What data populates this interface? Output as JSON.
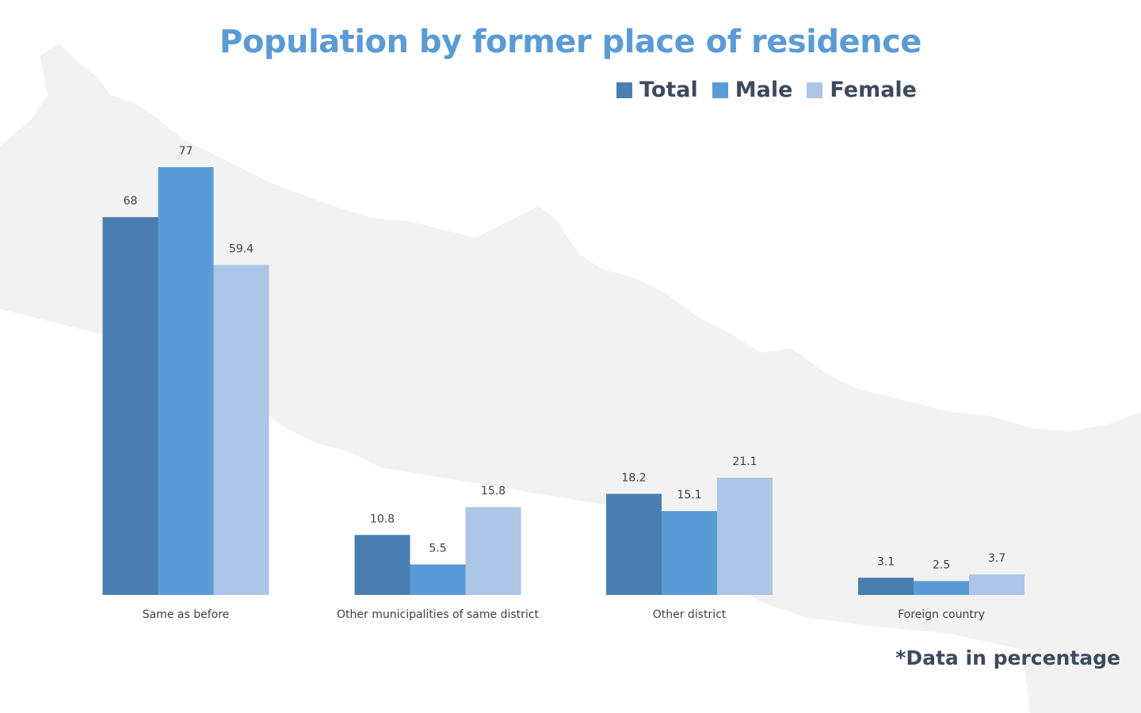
{
  "chart_data": {
    "type": "bar",
    "title": "Population by former place of residence",
    "categories": [
      "Same as before",
      "Other municipalities of same district",
      "Other district",
      "Foreign country"
    ],
    "series": [
      {
        "name": "Total",
        "values": [
          68,
          10.8,
          18.2,
          3.1
        ],
        "color": "#4a7eb0"
      },
      {
        "name": "Male",
        "values": [
          77,
          5.5,
          15.1,
          2.5
        ],
        "color": "#5b9bd5"
      },
      {
        "name": "Female",
        "values": [
          59.4,
          15.8,
          21.1,
          3.7
        ],
        "color": "#adc5e6"
      }
    ],
    "data_labels": [
      [
        "68",
        "10.8",
        "18.2",
        "3.1"
      ],
      [
        "77",
        "5.5",
        "15.1",
        "2.5"
      ],
      [
        "59.4",
        "15.8",
        "21.1",
        "3.7"
      ]
    ],
    "ylim": [
      0,
      77
    ],
    "grid": false,
    "legend_position": "top-right",
    "footnote": "*Data in percentage",
    "title_color": "#5b9bd5",
    "text_color": "#3c4a5c"
  }
}
